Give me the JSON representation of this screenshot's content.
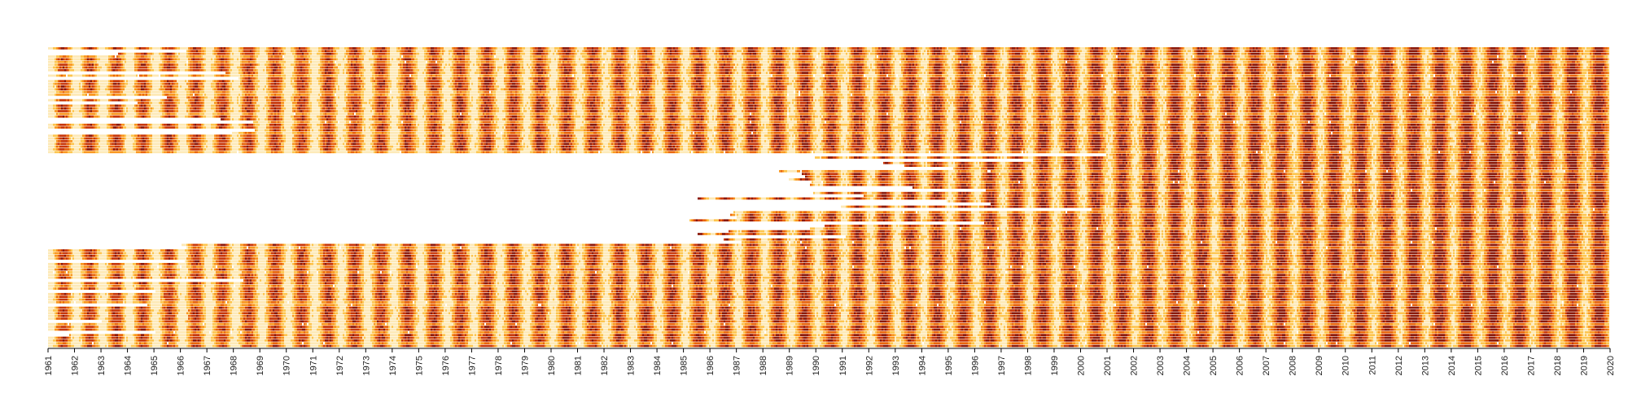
{
  "chart_data": {
    "type": "heatmap",
    "title": "",
    "xlabel": "",
    "ylabel": "",
    "x_range": [
      1961,
      2020
    ],
    "x_tick_labels": [
      "1961",
      "1962",
      "1963",
      "1964",
      "1965",
      "1966",
      "1967",
      "1968",
      "1969",
      "1970",
      "1971",
      "1972",
      "1973",
      "1974",
      "1975",
      "1976",
      "1977",
      "1978",
      "1979",
      "1980",
      "1981",
      "1982",
      "1983",
      "1984",
      "1985",
      "1986",
      "1987",
      "1988",
      "1989",
      "1990",
      "1991",
      "1992",
      "1993",
      "1994",
      "1995",
      "1996",
      "1997",
      "1998",
      "1999",
      "2000",
      "2001",
      "2002",
      "2003",
      "2004",
      "2005",
      "2006",
      "2007",
      "2008",
      "2009",
      "2010",
      "2011",
      "2012",
      "2013",
      "2014",
      "2015",
      "2016",
      "2017",
      "2018",
      "2019",
      "2020"
    ],
    "x_tick_orientation": "vertical",
    "y_tick_labels": [],
    "row_count": 110,
    "time_resolution": "daily",
    "legend": "none",
    "grid": false,
    "colormap": [
      "#ffffff",
      "#fde9b6",
      "#fdc54e",
      "#f9961e",
      "#e8650d",
      "#c8380c",
      "#8b1a0b"
    ],
    "missing_color": "#ffffff",
    "pattern": "annual seasonal cycle per row; darker red in summer, pale yellow in winter; large portions of middle rows missing before ~2000; overall warming toward 2020"
  }
}
